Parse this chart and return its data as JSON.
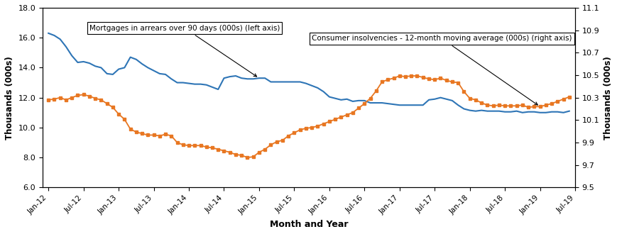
{
  "title": "",
  "xlabel": "Month and Year",
  "ylabel_left": "Thousands (000s)",
  "ylabel_right": "Thousands (000s)",
  "ylim_left": [
    6.0,
    18.0
  ],
  "ylim_right": [
    9.5,
    11.1
  ],
  "yticks_left": [
    6.0,
    8.0,
    10.0,
    12.0,
    14.0,
    16.0,
    18.0
  ],
  "yticks_right": [
    9.5,
    9.7,
    9.9,
    10.1,
    10.3,
    10.5,
    10.7,
    10.9,
    11.1
  ],
  "xtick_labels": [
    "Jan-12",
    "Jul-12",
    "Jan-13",
    "Jul-13",
    "Jan-14",
    "Jul-14",
    "Jan-15",
    "Jul-15",
    "Jan-16",
    "Jul-16",
    "Jan-17",
    "Jul-17",
    "Jan-18",
    "Jul-18",
    "Jan-19",
    "Jul-19"
  ],
  "blue_color": "#2E75B6",
  "orange_color": "#E87722",
  "annotation1_text": "Mortgages in arrears over 90 days (000s) (left axis)",
  "annotation2_text": "Consumer insolvencies - 12-month moving average (000s) (right axis)",
  "blue_data": [
    16.3,
    16.15,
    15.9,
    15.4,
    14.8,
    14.35,
    14.4,
    14.3,
    14.1,
    14.0,
    13.6,
    13.55,
    13.9,
    14.0,
    14.7,
    14.55,
    14.25,
    14.0,
    13.8,
    13.6,
    13.55,
    13.25,
    13.0,
    13.0,
    12.95,
    12.9,
    12.9,
    12.85,
    12.7,
    12.55,
    13.3,
    13.4,
    13.45,
    13.3,
    13.25,
    13.25,
    13.3,
    13.3,
    13.05,
    13.05,
    13.05,
    13.05,
    13.05,
    13.05,
    12.95,
    12.8,
    12.65,
    12.4,
    12.05,
    11.95,
    11.85,
    11.9,
    11.75,
    11.8,
    11.8,
    11.65,
    11.65,
    11.65,
    11.6,
    11.55,
    11.5,
    11.5,
    11.5,
    11.5,
    11.5,
    11.85,
    11.9,
    12.0,
    11.9,
    11.8,
    11.5,
    11.25,
    11.15,
    11.1,
    11.15,
    11.1,
    11.1,
    11.1,
    11.05,
    11.05,
    11.1,
    11.0,
    11.05,
    11.05,
    11.0,
    11.0,
    11.05,
    11.05,
    11.0,
    11.1
  ],
  "orange_data": [
    11.85,
    11.9,
    12.0,
    11.85,
    12.0,
    12.15,
    12.2,
    12.1,
    11.95,
    11.85,
    11.6,
    11.35,
    10.9,
    10.55,
    9.9,
    9.7,
    9.6,
    9.5,
    9.5,
    9.45,
    9.55,
    9.45,
    9.0,
    8.85,
    8.8,
    8.8,
    8.8,
    8.7,
    8.65,
    8.55,
    8.45,
    8.35,
    8.2,
    8.15,
    8.0,
    8.05,
    8.35,
    8.55,
    8.85,
    9.05,
    9.15,
    9.45,
    9.65,
    9.85,
    9.95,
    10.0,
    10.1,
    10.25,
    10.4,
    10.55,
    10.7,
    10.85,
    11.0,
    11.3,
    11.6,
    11.95,
    12.45,
    13.05,
    13.2,
    13.3,
    13.45,
    13.4,
    13.45,
    13.45,
    13.35,
    13.25,
    13.2,
    13.3,
    13.15,
    13.05,
    13.0,
    12.4,
    11.95,
    11.85,
    11.65,
    11.5,
    11.45,
    11.5,
    11.45,
    11.45,
    11.45,
    11.5,
    11.35,
    11.4,
    11.4,
    11.5,
    11.6,
    11.75,
    11.9,
    12.05
  ],
  "background_color": "#ffffff",
  "border_color": "#000000"
}
